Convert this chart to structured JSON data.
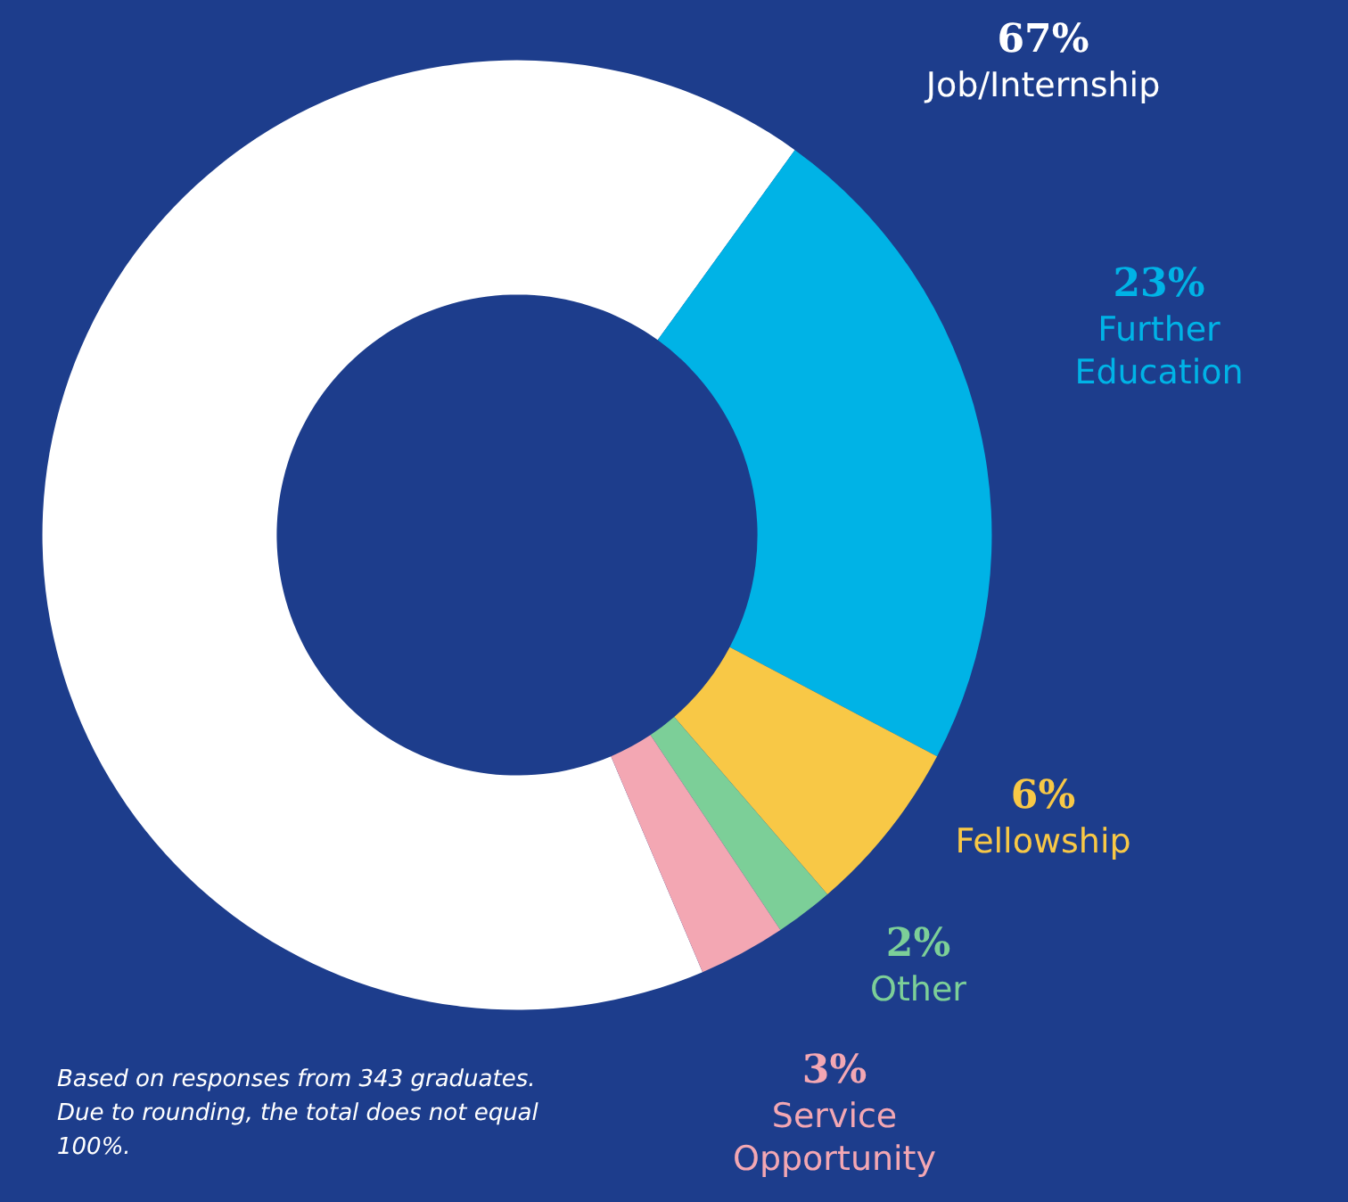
{
  "chart_data": {
    "type": "donut",
    "categories": [
      "Job/Internship",
      "Further Education",
      "Fellowship",
      "Other",
      "Service Opportunity"
    ],
    "values": [
      67,
      23,
      6,
      2,
      3
    ],
    "value_labels": [
      "67%",
      "23%",
      "6%",
      "2%",
      "3%"
    ],
    "colors": [
      "#ffffff",
      "#00b3e6",
      "#f8c846",
      "#7ccf98",
      "#f3a7b3"
    ],
    "annotations": [
      "Based on responses from 343 graduates. Due to rounding, the total does not equal 100%."
    ],
    "legend": false
  }
}
